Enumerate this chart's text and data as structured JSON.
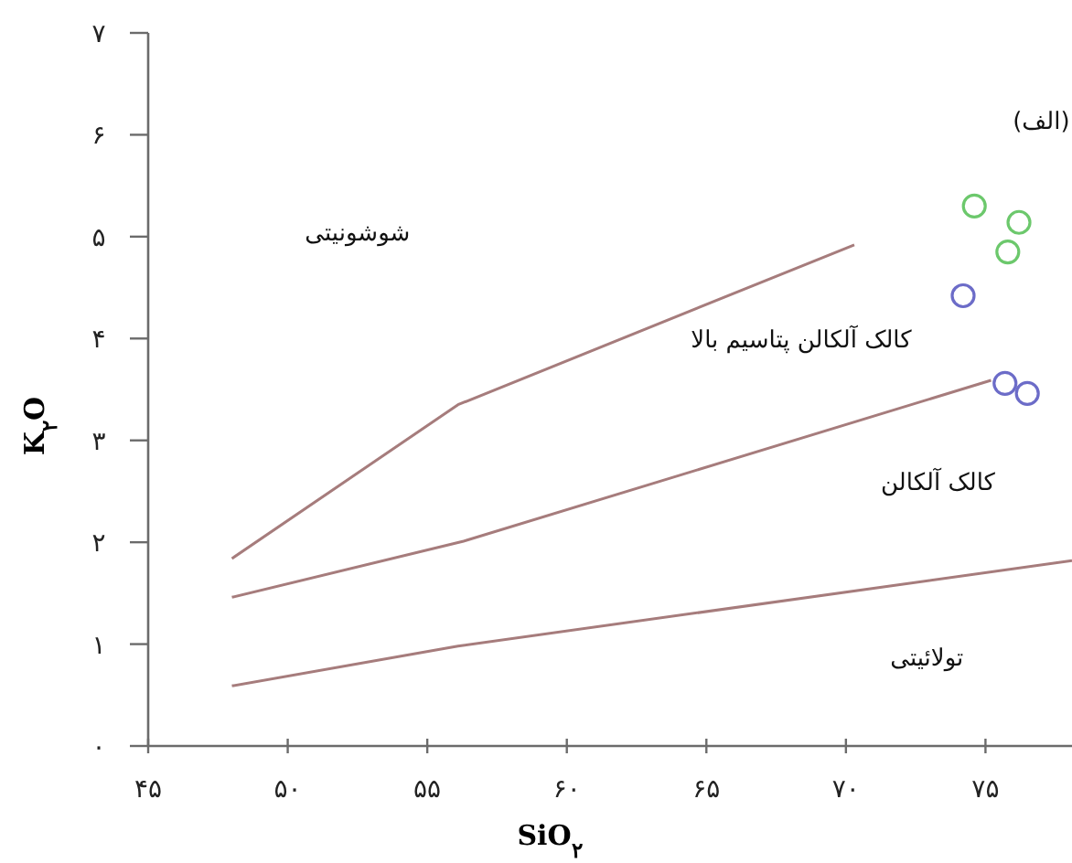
{
  "chart_data": {
    "type": "scatter",
    "xlabel": "SiO$_{۲}$",
    "ylabel": "K$_{۲}$O",
    "annotations": [
      "(الف)",
      "شوشونیتی",
      "کالک آلکالن پتاسیم بالا",
      "کالک آلکالن",
      "تولائیتی"
    ],
    "xlim": [
      45,
      78.1
    ],
    "ylim": [
      0,
      7
    ],
    "xticks": [
      {
        "value": 45,
        "label": "۴۵"
      },
      {
        "value": 50,
        "label": "۵۰"
      },
      {
        "value": 55,
        "label": "۵۵"
      },
      {
        "value": 60,
        "label": "۶۰"
      },
      {
        "value": 65,
        "label": "۶۵"
      },
      {
        "value": 70,
        "label": "۷۰"
      },
      {
        "value": 75,
        "label": "۷۵"
      }
    ],
    "yticks": [
      {
        "value": 0,
        "label": "۰"
      },
      {
        "value": 1,
        "label": "۱"
      },
      {
        "value": 2,
        "label": "۲"
      },
      {
        "value": 3,
        "label": "۳"
      },
      {
        "value": 4,
        "label": "۴"
      },
      {
        "value": 5,
        "label": "۵"
      },
      {
        "value": 6,
        "label": "۶"
      },
      {
        "value": 7,
        "label": "۷"
      }
    ],
    "series": [
      {
        "type": "line",
        "color": "#a67c7c",
        "x": [
          48.0,
          56.1,
          70.3
        ],
        "values": [
          1.84,
          3.35,
          4.92
        ]
      },
      {
        "type": "line",
        "color": "#a67c7c",
        "x": [
          48.0,
          56.3,
          75.2
        ],
        "values": [
          1.46,
          2.01,
          3.59
        ]
      },
      {
        "type": "line",
        "color": "#a67c7c",
        "x": [
          48.0,
          56.1,
          78.1
        ],
        "values": [
          0.59,
          0.98,
          1.82
        ]
      },
      {
        "marker": "circle",
        "color": "#6cc86c",
        "x": [
          74.6,
          76.2,
          75.8
        ],
        "values": [
          5.3,
          5.14,
          4.85
        ]
      },
      {
        "marker": "circle",
        "color": "#6c6cc8",
        "x": [
          74.2,
          75.7,
          76.5
        ],
        "values": [
          4.42,
          3.56,
          3.46
        ]
      }
    ]
  }
}
